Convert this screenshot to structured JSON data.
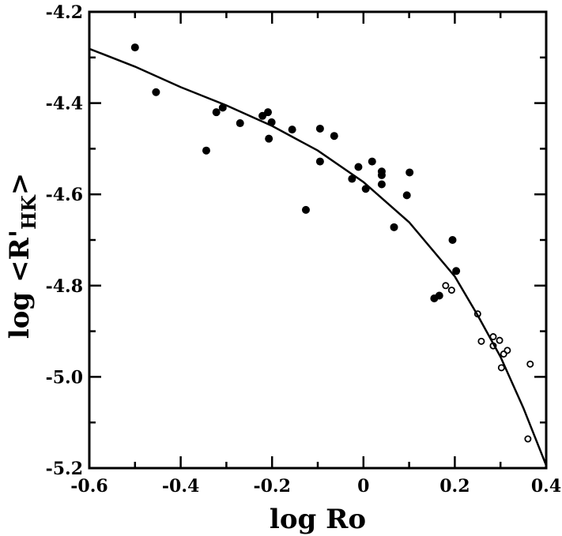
{
  "chart_data": {
    "type": "scatter",
    "title": "",
    "xlabel": "log Ro",
    "ylabel_parts": {
      "pre": "log <R'",
      "sub": "HK",
      "post": ">"
    },
    "xlim": [
      -0.6,
      0.4
    ],
    "ylim": [
      -5.2,
      -4.2
    ],
    "x_ticks": [
      -0.6,
      -0.4,
      -0.2,
      0,
      0.2,
      0.4
    ],
    "x_tick_labels": [
      "-0.6",
      "-0.4",
      "-0.2",
      "0",
      "0.2",
      "0.4"
    ],
    "y_ticks": [
      -5.2,
      -5.0,
      -4.8,
      -4.6,
      -4.4,
      -4.2
    ],
    "y_tick_labels": [
      "-5.2",
      "-5.0",
      "-4.8",
      "-4.6",
      "-4.4",
      "-4.2"
    ],
    "grid": false,
    "series": [
      {
        "marker": "filled-circle",
        "points": [
          [
            -0.5,
            -4.278
          ],
          [
            -0.454,
            -4.376
          ],
          [
            -0.344,
            -4.504
          ],
          [
            -0.322,
            -4.42
          ],
          [
            -0.308,
            -4.41
          ],
          [
            -0.27,
            -4.444
          ],
          [
            -0.221,
            -4.428
          ],
          [
            -0.209,
            -4.42
          ],
          [
            -0.207,
            -4.478
          ],
          [
            -0.201,
            -4.442
          ],
          [
            -0.156,
            -4.458
          ],
          [
            -0.126,
            -4.634
          ],
          [
            -0.095,
            -4.456
          ],
          [
            -0.095,
            -4.528
          ],
          [
            -0.064,
            -4.472
          ],
          [
            -0.025,
            -4.566
          ],
          [
            -0.011,
            -4.54
          ],
          [
            0.005,
            -4.588
          ],
          [
            0.019,
            -4.528
          ],
          [
            0.04,
            -4.55
          ],
          [
            0.04,
            -4.558
          ],
          [
            0.04,
            -4.578
          ],
          [
            0.067,
            -4.672
          ],
          [
            0.095,
            -4.602
          ],
          [
            0.101,
            -4.552
          ],
          [
            0.155,
            -4.828
          ],
          [
            0.166,
            -4.822
          ],
          [
            0.195,
            -4.7
          ],
          [
            0.203,
            -4.768
          ]
        ]
      },
      {
        "marker": "open-circle",
        "points": [
          [
            0.18,
            -4.8
          ],
          [
            0.193,
            -4.81
          ],
          [
            0.25,
            -4.862
          ],
          [
            0.258,
            -4.922
          ],
          [
            0.284,
            -4.912
          ],
          [
            0.284,
            -4.932
          ],
          [
            0.298,
            -4.92
          ],
          [
            0.302,
            -4.98
          ],
          [
            0.307,
            -4.95
          ],
          [
            0.315,
            -4.942
          ],
          [
            0.365,
            -4.972
          ],
          [
            0.36,
            -5.136
          ]
        ]
      }
    ],
    "fit_line": {
      "x": [
        -0.6,
        -0.5,
        -0.4,
        -0.3,
        -0.2,
        -0.1,
        0.0,
        0.1,
        0.2,
        0.25,
        0.3,
        0.35,
        0.4
      ],
      "y": [
        -4.281,
        -4.32,
        -4.365,
        -4.405,
        -4.45,
        -4.504,
        -4.573,
        -4.661,
        -4.78,
        -4.865,
        -4.956,
        -5.068,
        -5.194
      ]
    }
  },
  "colors": {
    "ink": "#000000",
    "background": "#ffffff"
  }
}
